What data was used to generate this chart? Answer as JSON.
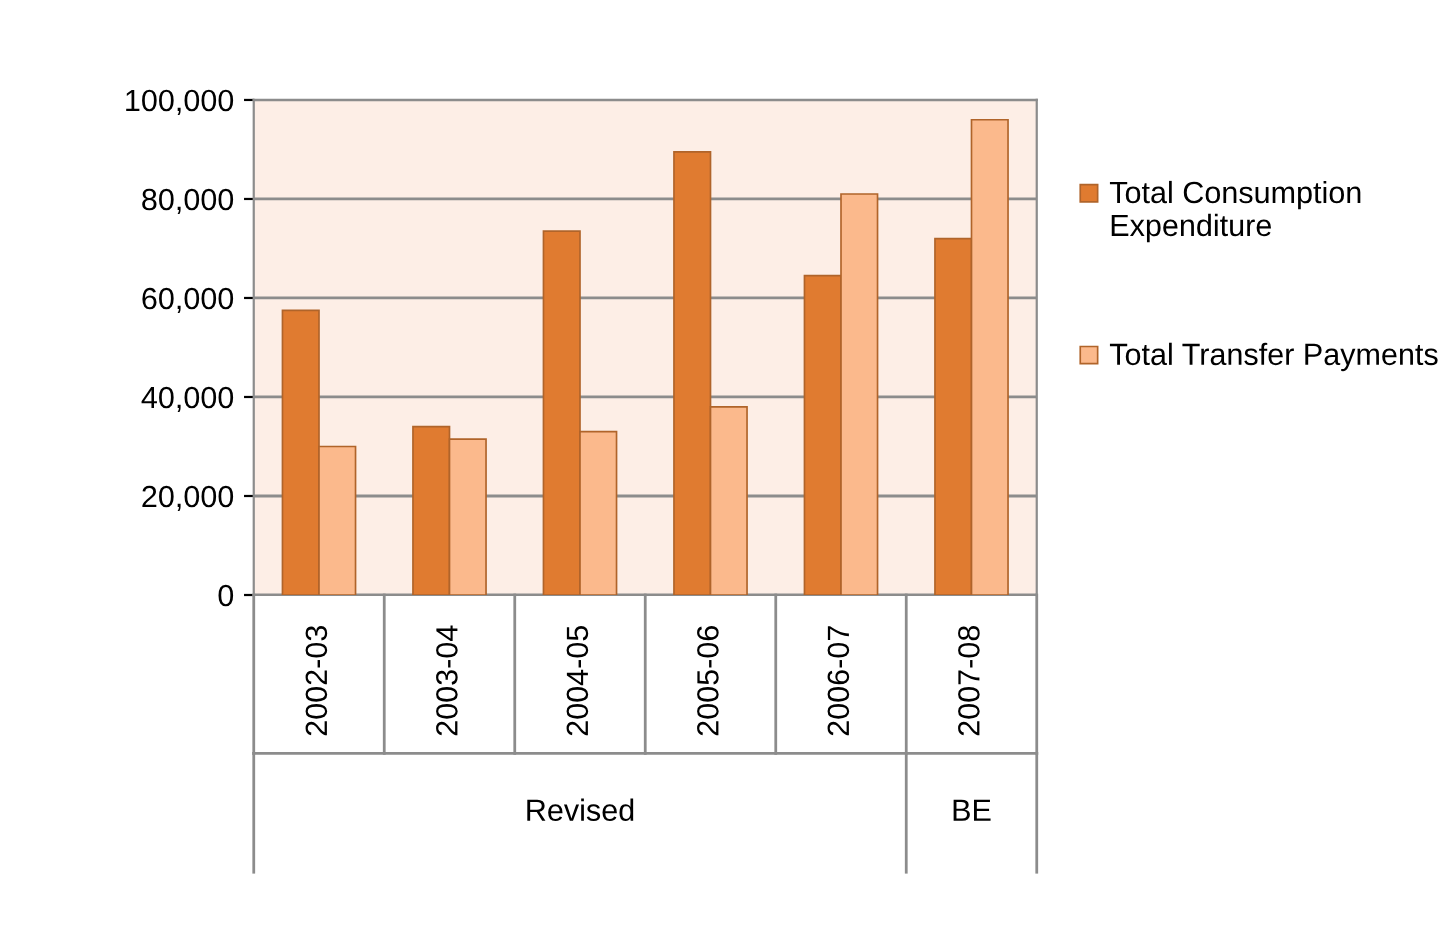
{
  "chart_data": {
    "type": "bar",
    "categories": [
      "2002-03",
      "2003-04",
      "2004-05",
      "2005-06",
      "2006-07",
      "2007-08"
    ],
    "series": [
      {
        "name": "Total Consumption Expenditure",
        "color": "#e07b30",
        "values": [
          57500,
          34000,
          73500,
          89500,
          64500,
          72000
        ]
      },
      {
        "name": "Total Transfer Payments",
        "color": "#fbb98c",
        "values": [
          30000,
          31500,
          33000,
          38000,
          81000,
          96000
        ]
      }
    ],
    "annotations": [
      "Revised",
      "BE"
    ],
    "ylim": [
      0,
      100000
    ],
    "yticks": [
      {
        "value": 0,
        "label": "0"
      },
      {
        "value": 20000,
        "label": "20,000"
      },
      {
        "value": 40000,
        "label": "40,000"
      },
      {
        "value": 60000,
        "label": "60,000"
      },
      {
        "value": 80000,
        "label": "80,000"
      },
      {
        "value": 100000,
        "label": "100,000"
      }
    ],
    "grid": "y",
    "legend": "right"
  }
}
